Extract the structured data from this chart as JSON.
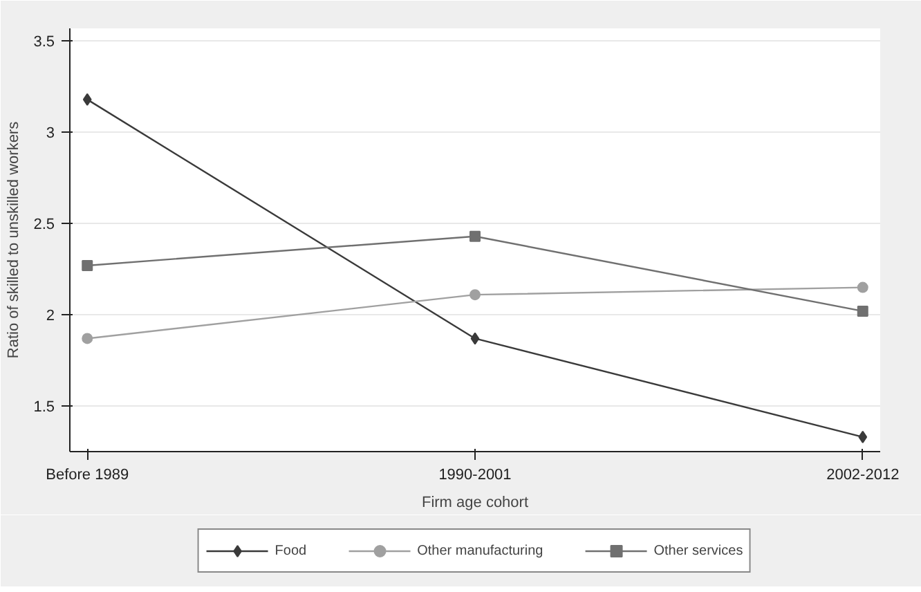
{
  "chart_data": {
    "type": "line",
    "xlabel": "Firm age cohort",
    "ylabel": "Ratio of skilled to unskilled workers",
    "categories": [
      "Before 1989",
      "1990-2001",
      "2002-2012"
    ],
    "series": [
      {
        "name": "Food",
        "color": "#3a3a3a",
        "marker": "diamond",
        "values": [
          3.18,
          1.87,
          1.33
        ]
      },
      {
        "name": "Other manufacturing",
        "color": "#a0a0a0",
        "marker": "circle",
        "values": [
          1.87,
          2.11,
          2.15
        ]
      },
      {
        "name": "Other services",
        "color": "#707070",
        "marker": "square",
        "values": [
          2.27,
          2.43,
          2.02
        ]
      }
    ],
    "ylim": [
      1.25,
      3.57
    ],
    "yticks": [
      {
        "value": 1.5,
        "label": "1.5"
      },
      {
        "value": 2,
        "label": "2"
      },
      {
        "value": 2.5,
        "label": "2.5"
      },
      {
        "value": 3,
        "label": "3"
      },
      {
        "value": 3.5,
        "label": "3.5"
      }
    ],
    "grid": "y",
    "legend": "bottom",
    "line_style": "solid"
  }
}
